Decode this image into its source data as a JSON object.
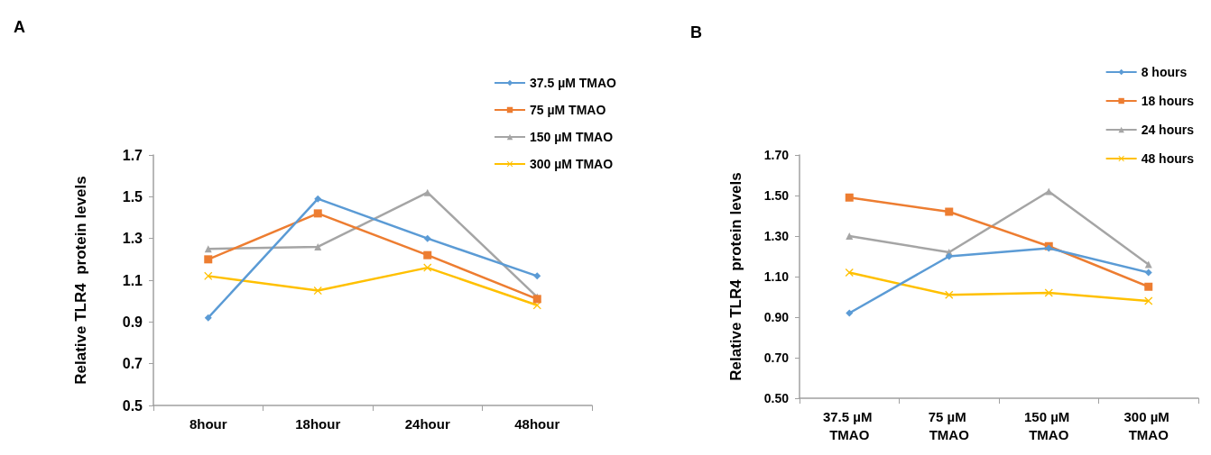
{
  "chart_data": [
    {
      "type": "line",
      "title": "A",
      "ylabel": "Relative TLR4  protein levels",
      "categories": [
        "8hour",
        "18hour",
        "24hour",
        "48hour"
      ],
      "ylim": [
        0.5,
        1.7
      ],
      "yticks": [
        0.5,
        0.7,
        0.9,
        1.1,
        1.3,
        1.5,
        1.7
      ],
      "grid": false,
      "legend": "top right",
      "line_style": "solid",
      "series": [
        {
          "name": "37.5 µM TMAO",
          "color": "#5b9bd5",
          "marker": "diamond",
          "values": [
            0.92,
            1.49,
            1.3,
            1.12
          ]
        },
        {
          "name": "75 µM TMAO",
          "color": "#ed7d31",
          "marker": "square",
          "values": [
            1.2,
            1.42,
            1.22,
            1.01
          ]
        },
        {
          "name": "150 µM TMAO",
          "color": "#a5a5a5",
          "marker": "triangle",
          "values": [
            1.25,
            1.26,
            1.52,
            1.02
          ]
        },
        {
          "name": "300 µM TMAO",
          "color": "#ffc000",
          "marker": "cross",
          "values": [
            1.12,
            1.05,
            1.16,
            0.98
          ]
        }
      ]
    },
    {
      "type": "line",
      "title": "B",
      "ylabel": "Relative TLR4  protein levels",
      "categories": [
        "37.5 µM TMAO",
        "75 µM TMAO",
        "150 µM TMAO",
        "300 µM TMAO"
      ],
      "ylim": [
        0.5,
        1.7
      ],
      "yticks": [
        {
          "value": 0.5,
          "label": "0.50"
        },
        {
          "value": 0.7,
          "label": "0.70"
        },
        {
          "value": 0.9,
          "label": "0.90"
        },
        {
          "value": 1.1,
          "label": "1.10"
        },
        {
          "value": 1.3,
          "label": "1.30"
        },
        {
          "value": 1.5,
          "label": "1.50"
        },
        {
          "value": 1.7,
          "label": "1.70"
        }
      ],
      "grid": false,
      "legend": "top right",
      "line_style": "solid",
      "series": [
        {
          "name": "8 hours",
          "color": "#5b9bd5",
          "marker": "diamond",
          "values": [
            0.92,
            1.2,
            1.24,
            1.12
          ]
        },
        {
          "name": "18 hours",
          "color": "#ed7d31",
          "marker": "square",
          "values": [
            1.49,
            1.42,
            1.25,
            1.05
          ]
        },
        {
          "name": "24 hours",
          "color": "#a5a5a5",
          "marker": "triangle",
          "values": [
            1.3,
            1.22,
            1.52,
            1.16
          ]
        },
        {
          "name": "48 hours",
          "color": "#ffc000",
          "marker": "cross",
          "values": [
            1.12,
            1.01,
            1.02,
            0.98
          ]
        }
      ]
    }
  ]
}
